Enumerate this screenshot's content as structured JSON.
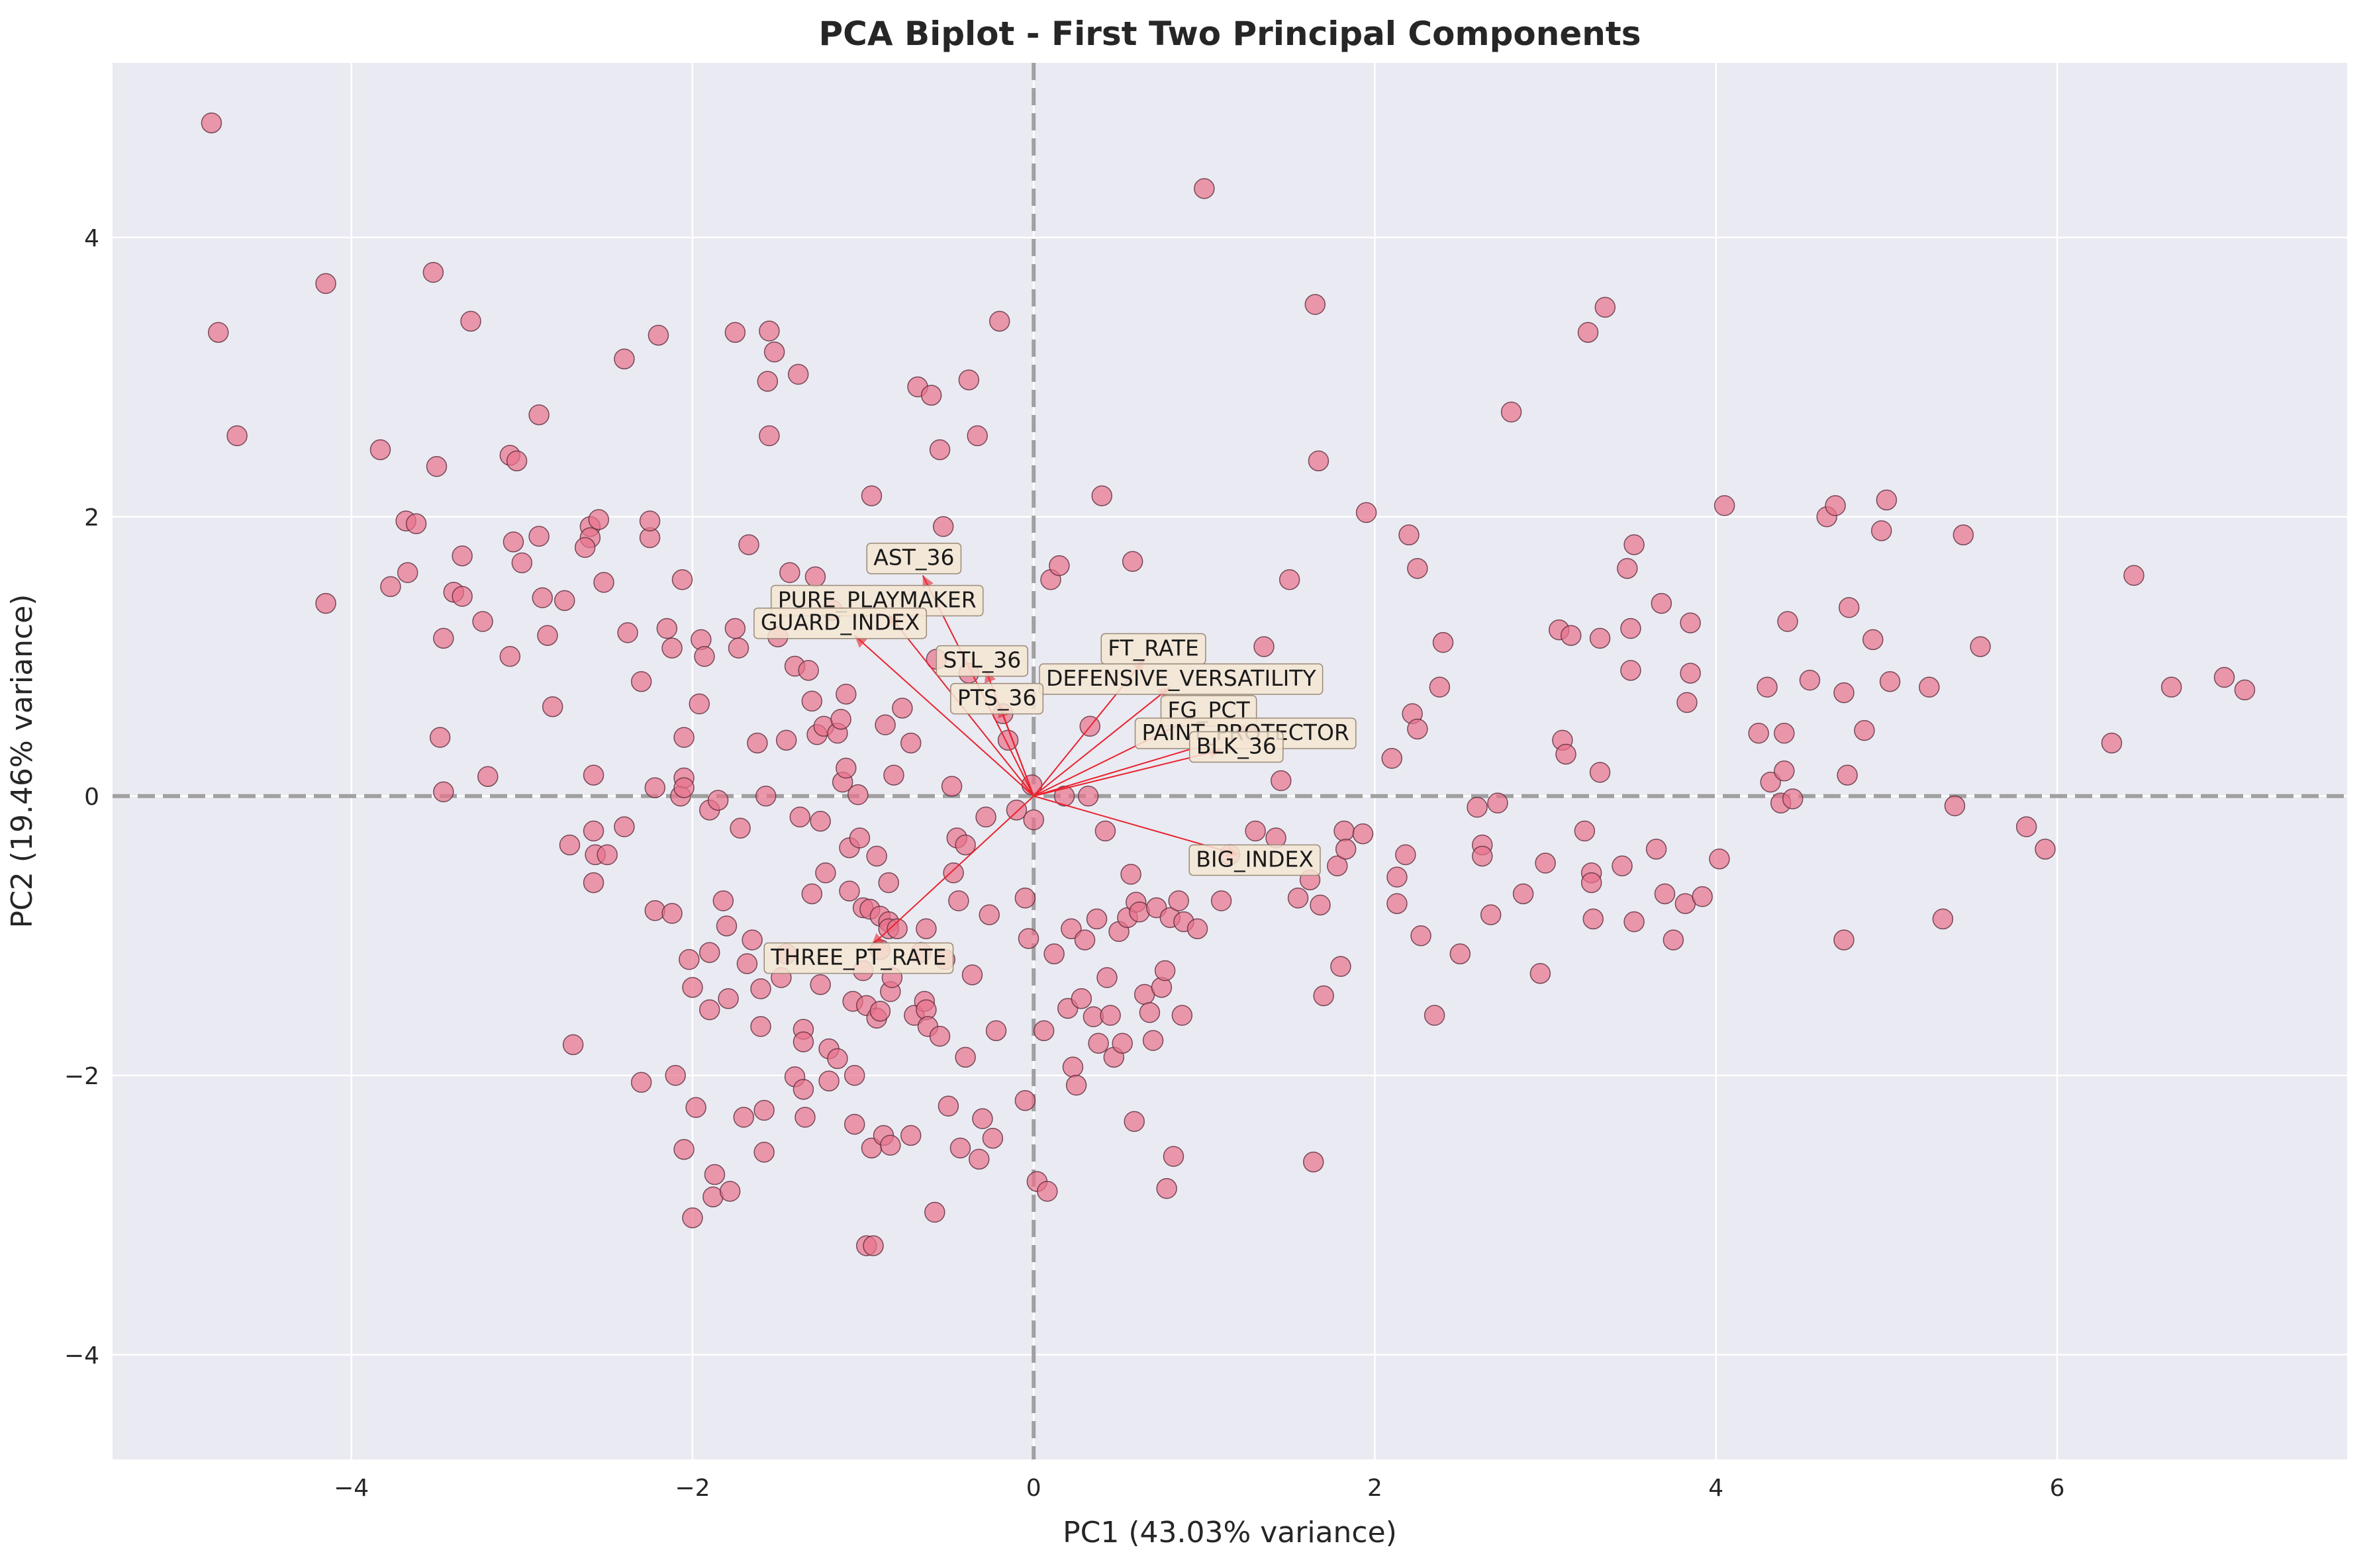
{
  "chart_data": {
    "type": "scatter",
    "title": "PCA Biplot - First Two Principal Components",
    "xlabel": "PC1 (43.03% variance)",
    "ylabel": "PC2 (19.46% variance)",
    "xlim": [
      -5.4,
      7.7
    ],
    "ylim": [
      -4.75,
      5.25
    ],
    "xticks": [
      -4,
      -2,
      0,
      2,
      4,
      6
    ],
    "yticks": [
      -4,
      -2,
      0,
      2,
      4
    ],
    "grid": true,
    "reference_lines": {
      "x": 0,
      "y": 0
    },
    "colors": {
      "plot_background": "#eaeaf2",
      "grid": "#ffffff",
      "points": "#e8728b",
      "point_edge": "#5a2a3a",
      "arrows": "#e8232e",
      "label_box": "#f5e6d3",
      "reference_line": "#a0a0a0"
    },
    "loadings": [
      {
        "name": "AST_36",
        "x": -0.65,
        "y": 1.58
      },
      {
        "name": "PURE_PLAYMAKER",
        "x": -0.85,
        "y": 1.3
      },
      {
        "name": "GUARD_INDEX",
        "x": -1.05,
        "y": 1.15
      },
      {
        "name": "STL_36",
        "x": -0.28,
        "y": 0.9
      },
      {
        "name": "FT_RATE",
        "x": 0.65,
        "y": 0.98
      },
      {
        "name": "DEFENSIVE_VERSATILITY",
        "x": 0.8,
        "y": 0.78
      },
      {
        "name": "PTS_36",
        "x": -0.2,
        "y": 0.65
      },
      {
        "name": "FG_PCT",
        "x": 0.95,
        "y": 0.57
      },
      {
        "name": "PAINT_PROTECTOR",
        "x": 1.15,
        "y": 0.42
      },
      {
        "name": "BLK_36",
        "x": 1.1,
        "y": 0.33
      },
      {
        "name": "BIG_INDEX",
        "x": 1.2,
        "y": -0.42
      },
      {
        "name": "THREE_PT_RATE",
        "x": -0.95,
        "y": -1.07
      }
    ],
    "points": [
      [
        -4.82,
        4.82
      ],
      [
        -4.78,
        3.32
      ],
      [
        -4.67,
        2.58
      ],
      [
        -4.15,
        3.67
      ],
      [
        -4.15,
        1.38
      ],
      [
        -3.83,
        2.48
      ],
      [
        -3.77,
        1.5
      ],
      [
        -3.68,
        1.97
      ],
      [
        -3.67,
        1.6
      ],
      [
        -3.62,
        1.95
      ],
      [
        -3.52,
        3.75
      ],
      [
        -3.5,
        2.36
      ],
      [
        -3.48,
        0.42
      ],
      [
        -3.46,
        1.13
      ],
      [
        -3.46,
        0.03
      ],
      [
        -3.4,
        1.46
      ],
      [
        -3.35,
        1.43
      ],
      [
        -3.35,
        1.72
      ],
      [
        -3.3,
        3.4
      ],
      [
        -3.23,
        1.25
      ],
      [
        -3.2,
        0.14
      ],
      [
        -3.07,
        2.44
      ],
      [
        -3.07,
        1.0
      ],
      [
        -3.05,
        1.82
      ],
      [
        -3.03,
        2.4
      ],
      [
        -3.0,
        1.67
      ],
      [
        -2.9,
        2.73
      ],
      [
        -2.9,
        1.86
      ],
      [
        -2.88,
        1.42
      ],
      [
        -2.85,
        1.15
      ],
      [
        -2.82,
        0.64
      ],
      [
        -2.75,
        1.4
      ],
      [
        -2.72,
        -0.35
      ],
      [
        -2.7,
        -1.78
      ],
      [
        -2.6,
        1.93
      ],
      [
        -2.6,
        1.85
      ],
      [
        -2.63,
        1.78
      ],
      [
        -2.58,
        0.15
      ],
      [
        -2.58,
        -0.25
      ],
      [
        -2.58,
        -0.62
      ],
      [
        -2.57,
        -0.42
      ],
      [
        -2.55,
        1.98
      ],
      [
        -2.52,
        1.53
      ],
      [
        -2.5,
        -0.42
      ],
      [
        -2.4,
        3.13
      ],
      [
        -2.4,
        -0.22
      ],
      [
        -2.38,
        1.17
      ],
      [
        -2.3,
        0.82
      ],
      [
        -2.3,
        -2.05
      ],
      [
        -2.25,
        1.85
      ],
      [
        -2.25,
        1.97
      ],
      [
        -2.22,
        0.06
      ],
      [
        -2.22,
        -0.82
      ],
      [
        -2.2,
        3.3
      ],
      [
        -2.15,
        1.2
      ],
      [
        -2.12,
        1.06
      ],
      [
        -2.12,
        -0.84
      ],
      [
        -2.1,
        -2.0
      ],
      [
        -2.07,
        0.0
      ],
      [
        -2.06,
        1.55
      ],
      [
        -2.05,
        0.42
      ],
      [
        -2.05,
        0.13
      ],
      [
        -2.05,
        0.06
      ],
      [
        -2.05,
        -2.53
      ],
      [
        -2.02,
        -1.17
      ],
      [
        -2.0,
        -1.37
      ],
      [
        -2.0,
        -3.02
      ],
      [
        -1.98,
        -2.23
      ],
      [
        -1.96,
        0.66
      ],
      [
        -1.95,
        1.12
      ],
      [
        -1.93,
        1.0
      ],
      [
        -1.9,
        -0.1
      ],
      [
        -1.9,
        -1.12
      ],
      [
        -1.9,
        -1.53
      ],
      [
        -1.88,
        -2.87
      ],
      [
        -1.87,
        -2.71
      ],
      [
        -1.85,
        -0.03
      ],
      [
        -1.82,
        -0.75
      ],
      [
        -1.8,
        -0.93
      ],
      [
        -1.79,
        -1.45
      ],
      [
        -1.78,
        -2.83
      ],
      [
        -1.75,
        1.2
      ],
      [
        -1.75,
        3.32
      ],
      [
        -1.73,
        1.06
      ],
      [
        -1.72,
        -0.23
      ],
      [
        -1.7,
        -2.3
      ],
      [
        -1.68,
        -1.2
      ],
      [
        -1.67,
        1.8
      ],
      [
        -1.65,
        -1.03
      ],
      [
        -1.62,
        0.38
      ],
      [
        -1.6,
        -1.38
      ],
      [
        -1.6,
        -1.65
      ],
      [
        -1.58,
        -2.25
      ],
      [
        -1.58,
        -2.55
      ],
      [
        -1.57,
        0.0
      ],
      [
        -1.56,
        2.97
      ],
      [
        -1.55,
        3.33
      ],
      [
        -1.55,
        2.58
      ],
      [
        -1.52,
        3.18
      ],
      [
        -1.5,
        1.14
      ],
      [
        -1.48,
        -1.3
      ],
      [
        -1.45,
        0.4
      ],
      [
        -1.45,
        -1.13
      ],
      [
        -1.43,
        1.6
      ],
      [
        -1.4,
        0.93
      ],
      [
        -1.4,
        -2.01
      ],
      [
        -1.38,
        3.02
      ],
      [
        -1.37,
        -0.15
      ],
      [
        -1.35,
        -1.67
      ],
      [
        -1.35,
        -1.76
      ],
      [
        -1.35,
        -2.1
      ],
      [
        -1.34,
        -2.3
      ],
      [
        -1.32,
        0.9
      ],
      [
        -1.3,
        0.68
      ],
      [
        -1.3,
        -0.7
      ],
      [
        -1.28,
        1.57
      ],
      [
        -1.27,
        0.44
      ],
      [
        -1.25,
        -0.18
      ],
      [
        -1.25,
        -1.35
      ],
      [
        -1.23,
        0.5
      ],
      [
        -1.22,
        -0.55
      ],
      [
        -1.2,
        -1.81
      ],
      [
        -1.2,
        -2.04
      ],
      [
        -1.18,
        1.33
      ],
      [
        -1.15,
        0.45
      ],
      [
        -1.15,
        -1.88
      ],
      [
        -1.13,
        0.55
      ],
      [
        -1.12,
        0.1
      ],
      [
        -1.1,
        0.73
      ],
      [
        -1.1,
        0.2
      ],
      [
        -1.08,
        -0.37
      ],
      [
        -1.08,
        -0.68
      ],
      [
        -1.06,
        -1.47
      ],
      [
        -1.05,
        -2.0
      ],
      [
        -1.05,
        -2.35
      ],
      [
        -1.03,
        0.01
      ],
      [
        -1.02,
        -0.3
      ],
      [
        -1.0,
        -0.8
      ],
      [
        -1.0,
        -1.25
      ],
      [
        -0.98,
        -1.5
      ],
      [
        -0.98,
        -3.22
      ],
      [
        -0.96,
        -0.81
      ],
      [
        -0.95,
        2.15
      ],
      [
        -0.95,
        -2.52
      ],
      [
        -0.94,
        -3.22
      ],
      [
        -0.92,
        -0.43
      ],
      [
        -0.92,
        -1.59
      ],
      [
        -0.9,
        -0.86
      ],
      [
        -0.9,
        -1.1
      ],
      [
        -0.9,
        -1.54
      ],
      [
        -0.88,
        -2.43
      ],
      [
        -0.87,
        0.51
      ],
      [
        -0.85,
        -0.62
      ],
      [
        -0.85,
        -0.9
      ],
      [
        -0.85,
        -0.95
      ],
      [
        -0.84,
        -1.4
      ],
      [
        -0.84,
        -2.5
      ],
      [
        -0.83,
        -1.3
      ],
      [
        -0.82,
        0.15
      ],
      [
        -0.8,
        -0.95
      ],
      [
        -0.77,
        0.63
      ],
      [
        -0.72,
        0.38
      ],
      [
        -0.72,
        -2.43
      ],
      [
        -0.7,
        -1.57
      ],
      [
        -0.68,
        2.93
      ],
      [
        -0.66,
        -1.12
      ],
      [
        -0.64,
        -1.47
      ],
      [
        -0.63,
        -0.95
      ],
      [
        -0.63,
        -1.53
      ],
      [
        -0.62,
        -1.65
      ],
      [
        -0.6,
        2.87
      ],
      [
        -0.58,
        -2.98
      ],
      [
        -0.57,
        0.98
      ],
      [
        -0.55,
        2.48
      ],
      [
        -0.55,
        -1.72
      ],
      [
        -0.53,
        1.93
      ],
      [
        -0.52,
        -1.17
      ],
      [
        -0.5,
        -2.22
      ],
      [
        -0.48,
        0.07
      ],
      [
        -0.47,
        -0.55
      ],
      [
        -0.45,
        -0.3
      ],
      [
        -0.44,
        -0.75
      ],
      [
        -0.43,
        -2.52
      ],
      [
        -0.4,
        -0.35
      ],
      [
        -0.4,
        -1.87
      ],
      [
        -0.38,
        2.98
      ],
      [
        -0.38,
        0.88
      ],
      [
        -0.36,
        -1.28
      ],
      [
        -0.33,
        2.58
      ],
      [
        -0.32,
        -2.6
      ],
      [
        -0.3,
        -2.31
      ],
      [
        -0.28,
        -0.15
      ],
      [
        -0.26,
        -0.85
      ],
      [
        -0.24,
        -2.45
      ],
      [
        -0.22,
        -1.68
      ],
      [
        -0.2,
        3.4
      ],
      [
        -0.18,
        0.59
      ],
      [
        -0.15,
        0.4
      ],
      [
        -0.1,
        -0.1
      ],
      [
        -0.05,
        -0.73
      ],
      [
        -0.05,
        -2.18
      ],
      [
        -0.03,
        -1.02
      ],
      [
        -0.01,
        0.08
      ],
      [
        0.0,
        -0.17
      ],
      [
        0.02,
        -2.76
      ],
      [
        0.06,
        -1.68
      ],
      [
        0.08,
        -2.83
      ],
      [
        0.1,
        1.55
      ],
      [
        0.12,
        -1.13
      ],
      [
        0.15,
        1.65
      ],
      [
        0.18,
        0.0
      ],
      [
        0.2,
        -1.52
      ],
      [
        0.22,
        -0.95
      ],
      [
        0.23,
        -1.94
      ],
      [
        0.25,
        -2.07
      ],
      [
        0.28,
        -1.45
      ],
      [
        0.3,
        -1.03
      ],
      [
        0.32,
        0.0
      ],
      [
        0.33,
        0.5
      ],
      [
        0.35,
        -1.58
      ],
      [
        0.37,
        -0.88
      ],
      [
        0.38,
        -1.77
      ],
      [
        0.4,
        2.15
      ],
      [
        0.42,
        -0.25
      ],
      [
        0.43,
        -1.3
      ],
      [
        0.45,
        -1.57
      ],
      [
        0.47,
        -1.87
      ],
      [
        0.5,
        -0.97
      ],
      [
        0.52,
        -1.77
      ],
      [
        0.55,
        -0.87
      ],
      [
        0.57,
        -0.56
      ],
      [
        0.58,
        1.68
      ],
      [
        0.59,
        -2.33
      ],
      [
        0.6,
        -0.76
      ],
      [
        0.62,
        -0.83
      ],
      [
        0.65,
        -1.42
      ],
      [
        0.68,
        -1.55
      ],
      [
        0.7,
        -1.75
      ],
      [
        0.72,
        -0.8
      ],
      [
        0.75,
        -1.37
      ],
      [
        0.77,
        -1.25
      ],
      [
        0.78,
        -2.81
      ],
      [
        0.8,
        -0.87
      ],
      [
        0.82,
        -2.58
      ],
      [
        0.85,
        -0.75
      ],
      [
        0.87,
        -1.57
      ],
      [
        0.88,
        -0.9
      ],
      [
        0.96,
        -0.95
      ],
      [
        1.0,
        4.35
      ],
      [
        1.1,
        -0.75
      ],
      [
        1.15,
        -0.42
      ],
      [
        1.25,
        0.45
      ],
      [
        1.3,
        -0.25
      ],
      [
        1.35,
        1.07
      ],
      [
        1.42,
        -0.3
      ],
      [
        1.45,
        0.11
      ],
      [
        1.5,
        1.55
      ],
      [
        1.55,
        -0.73
      ],
      [
        1.62,
        -0.6
      ],
      [
        1.64,
        -2.62
      ],
      [
        1.65,
        3.52
      ],
      [
        1.67,
        2.4
      ],
      [
        1.68,
        -0.78
      ],
      [
        1.7,
        -1.43
      ],
      [
        1.78,
        -0.5
      ],
      [
        1.8,
        -1.22
      ],
      [
        1.82,
        -0.25
      ],
      [
        1.83,
        -0.38
      ],
      [
        1.93,
        -0.27
      ],
      [
        1.95,
        2.03
      ],
      [
        2.1,
        0.27
      ],
      [
        2.13,
        -0.58
      ],
      [
        2.13,
        -0.77
      ],
      [
        2.18,
        -0.42
      ],
      [
        2.2,
        1.87
      ],
      [
        2.22,
        0.59
      ],
      [
        2.25,
        0.48
      ],
      [
        2.25,
        1.63
      ],
      [
        2.27,
        -1.0
      ],
      [
        2.35,
        -1.57
      ],
      [
        2.38,
        0.78
      ],
      [
        2.4,
        1.1
      ],
      [
        2.5,
        -1.13
      ],
      [
        2.6,
        -0.08
      ],
      [
        2.63,
        -0.35
      ],
      [
        2.63,
        -0.43
      ],
      [
        2.68,
        -0.85
      ],
      [
        2.72,
        -0.05
      ],
      [
        2.8,
        2.75
      ],
      [
        2.87,
        -0.7
      ],
      [
        2.97,
        -1.27
      ],
      [
        3.0,
        -0.48
      ],
      [
        3.08,
        1.19
      ],
      [
        3.1,
        0.4
      ],
      [
        3.12,
        0.3
      ],
      [
        3.15,
        1.15
      ],
      [
        3.23,
        -0.25
      ],
      [
        3.25,
        3.32
      ],
      [
        3.27,
        -0.55
      ],
      [
        3.27,
        -0.62
      ],
      [
        3.28,
        -0.88
      ],
      [
        3.32,
        1.13
      ],
      [
        3.32,
        0.17
      ],
      [
        3.35,
        3.5
      ],
      [
        3.45,
        -0.5
      ],
      [
        3.48,
        1.63
      ],
      [
        3.5,
        0.9
      ],
      [
        3.5,
        1.2
      ],
      [
        3.52,
        1.8
      ],
      [
        3.52,
        -0.9
      ],
      [
        3.65,
        -0.38
      ],
      [
        3.68,
        1.38
      ],
      [
        3.7,
        -0.7
      ],
      [
        3.75,
        -1.03
      ],
      [
        3.82,
        -0.77
      ],
      [
        3.83,
        0.67
      ],
      [
        3.85,
        1.24
      ],
      [
        3.85,
        0.88
      ],
      [
        3.92,
        -0.72
      ],
      [
        4.02,
        -0.45
      ],
      [
        4.05,
        2.08
      ],
      [
        4.25,
        0.45
      ],
      [
        4.3,
        0.78
      ],
      [
        4.32,
        0.1
      ],
      [
        4.38,
        -0.05
      ],
      [
        4.4,
        0.45
      ],
      [
        4.4,
        0.18
      ],
      [
        4.42,
        1.25
      ],
      [
        4.45,
        -0.02
      ],
      [
        4.55,
        0.83
      ],
      [
        4.65,
        2.0
      ],
      [
        4.7,
        2.08
      ],
      [
        4.75,
        0.74
      ],
      [
        4.75,
        -1.03
      ],
      [
        4.77,
        0.15
      ],
      [
        4.78,
        1.35
      ],
      [
        4.87,
        0.47
      ],
      [
        4.92,
        1.12
      ],
      [
        4.97,
        1.9
      ],
      [
        5.0,
        2.12
      ],
      [
        5.02,
        0.82
      ],
      [
        5.25,
        0.78
      ],
      [
        5.33,
        -0.88
      ],
      [
        5.4,
        -0.07
      ],
      [
        5.45,
        1.87
      ],
      [
        5.55,
        1.07
      ],
      [
        5.82,
        -0.22
      ],
      [
        5.93,
        -0.38
      ],
      [
        6.32,
        0.38
      ],
      [
        6.45,
        1.58
      ],
      [
        6.67,
        0.78
      ],
      [
        6.98,
        0.85
      ],
      [
        7.1,
        0.76
      ]
    ]
  }
}
